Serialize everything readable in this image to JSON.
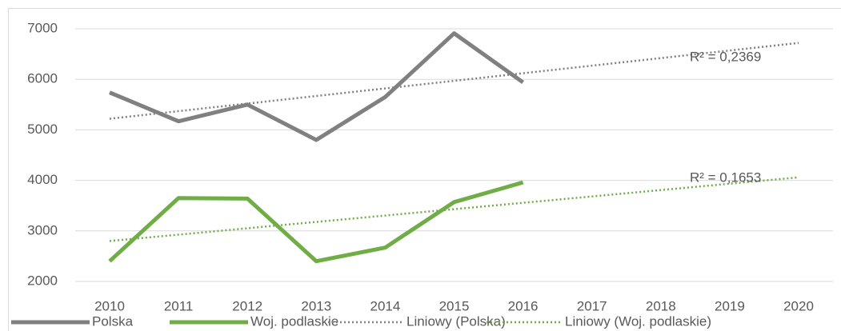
{
  "chart_data": {
    "type": "line",
    "categories": [
      "2010",
      "2011",
      "2012",
      "2013",
      "2014",
      "2015",
      "2016",
      "2017",
      "2018",
      "2019",
      "2020"
    ],
    "series": [
      {
        "name": "Polska",
        "color": "#808080",
        "style": "solid",
        "values": [
          5740,
          5170,
          5500,
          4800,
          5650,
          6910,
          5940,
          null,
          null,
          null,
          null
        ]
      },
      {
        "name": "Woj. podlaskie",
        "color": "#70ad47",
        "style": "solid",
        "values": [
          2400,
          3650,
          3640,
          2400,
          2670,
          3570,
          3960,
          null,
          null,
          null,
          null
        ]
      },
      {
        "name": "Liniowy (Polska)",
        "color": "#808080",
        "style": "dotted",
        "values": [
          5220,
          5370,
          5520,
          5670,
          5820,
          5970,
          6120,
          6270,
          6420,
          6570,
          6720
        ]
      },
      {
        "name": "Liniowy (Woj. podlaskie)",
        "color": "#70ad47",
        "style": "dotted",
        "values": [
          2800,
          2926,
          3052,
          3178,
          3304,
          3430,
          3556,
          3682,
          3808,
          3934,
          4060
        ]
      }
    ],
    "annotations": [
      "R² = 0,2369",
      "R² = 0,1653"
    ],
    "ylim": [
      2000,
      7000
    ],
    "yticks": [
      2000,
      3000,
      4000,
      5000,
      6000,
      7000
    ],
    "grid": true,
    "legend": "bottom"
  }
}
